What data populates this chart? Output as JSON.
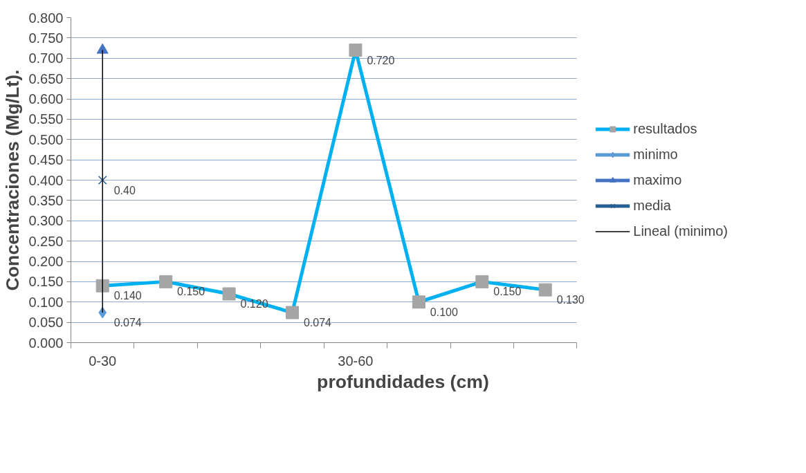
{
  "chart_data": {
    "type": "line",
    "xlabel": "profundidades (cm)",
    "ylabel": "Concentraciones (Mg/Lt).",
    "categories": [
      "0-30",
      null,
      null,
      null,
      "30-60",
      null,
      null,
      null
    ],
    "ylim": [
      0,
      0.8
    ],
    "yticks": [
      {
        "value": 0,
        "label": "0.000"
      },
      {
        "value": 0.05,
        "label": "0.050"
      },
      {
        "value": 0.1,
        "label": "0.100"
      },
      {
        "value": 0.15,
        "label": "0.150"
      },
      {
        "value": 0.2,
        "label": "0.200"
      },
      {
        "value": 0.25,
        "label": "0.250"
      },
      {
        "value": 0.3,
        "label": "0.300"
      },
      {
        "value": 0.35,
        "label": "0.350"
      },
      {
        "value": 0.4,
        "label": "0.400"
      },
      {
        "value": 0.45,
        "label": "0.450"
      },
      {
        "value": 0.5,
        "label": "0.500"
      },
      {
        "value": 0.55,
        "label": "0.550"
      },
      {
        "value": 0.6,
        "label": "0.600"
      },
      {
        "value": 0.65,
        "label": "0.650"
      },
      {
        "value": 0.7,
        "label": "0.700"
      },
      {
        "value": 0.75,
        "label": "0.750"
      },
      {
        "value": 0.8,
        "label": "0.800"
      }
    ],
    "grid": "y",
    "legend": "right",
    "series": [
      {
        "name": "resultados",
        "color": "#00b0f0",
        "colors": [
          "#a5a5a5",
          "#a5a5a5",
          "#a5a5a5",
          "#a5a5a5",
          "#a5a5a5",
          "#a5a5a5",
          "#a5a5a5",
          "#a5a5a5"
        ],
        "marker": "square",
        "values": [
          0.14,
          0.15,
          0.12,
          0.074,
          0.72,
          0.1,
          0.15,
          0.13
        ],
        "value_labels": [
          "0.140",
          "0.150",
          "0.120",
          "0.074",
          "0.720",
          "0.100",
          "0.150",
          "0.130"
        ]
      },
      {
        "name": "minimo",
        "color": "#5b9bd5",
        "marker": "diamond",
        "values": [
          0.074,
          null,
          null,
          null,
          null,
          null,
          null,
          null
        ],
        "value_labels": [
          "0.074",
          null,
          null,
          null,
          null,
          null,
          null,
          null
        ]
      },
      {
        "name": "maximo",
        "color": "#4472c4",
        "marker": "triangle",
        "values": [
          0.72,
          null,
          null,
          null,
          null,
          null,
          null,
          null
        ]
      },
      {
        "name": "media",
        "color": "#255e91",
        "marker": "cross",
        "values": [
          0.4,
          null,
          null,
          null,
          null,
          null,
          null,
          null
        ],
        "value_labels": [
          "0.40",
          null,
          null,
          null,
          null,
          null,
          null,
          null
        ]
      },
      {
        "name": "Lineal (minimo)",
        "color": "#000000",
        "marker": "none",
        "x": [
          "0-30",
          "0-30"
        ],
        "values": [
          0.074,
          0.72
        ]
      }
    ]
  }
}
